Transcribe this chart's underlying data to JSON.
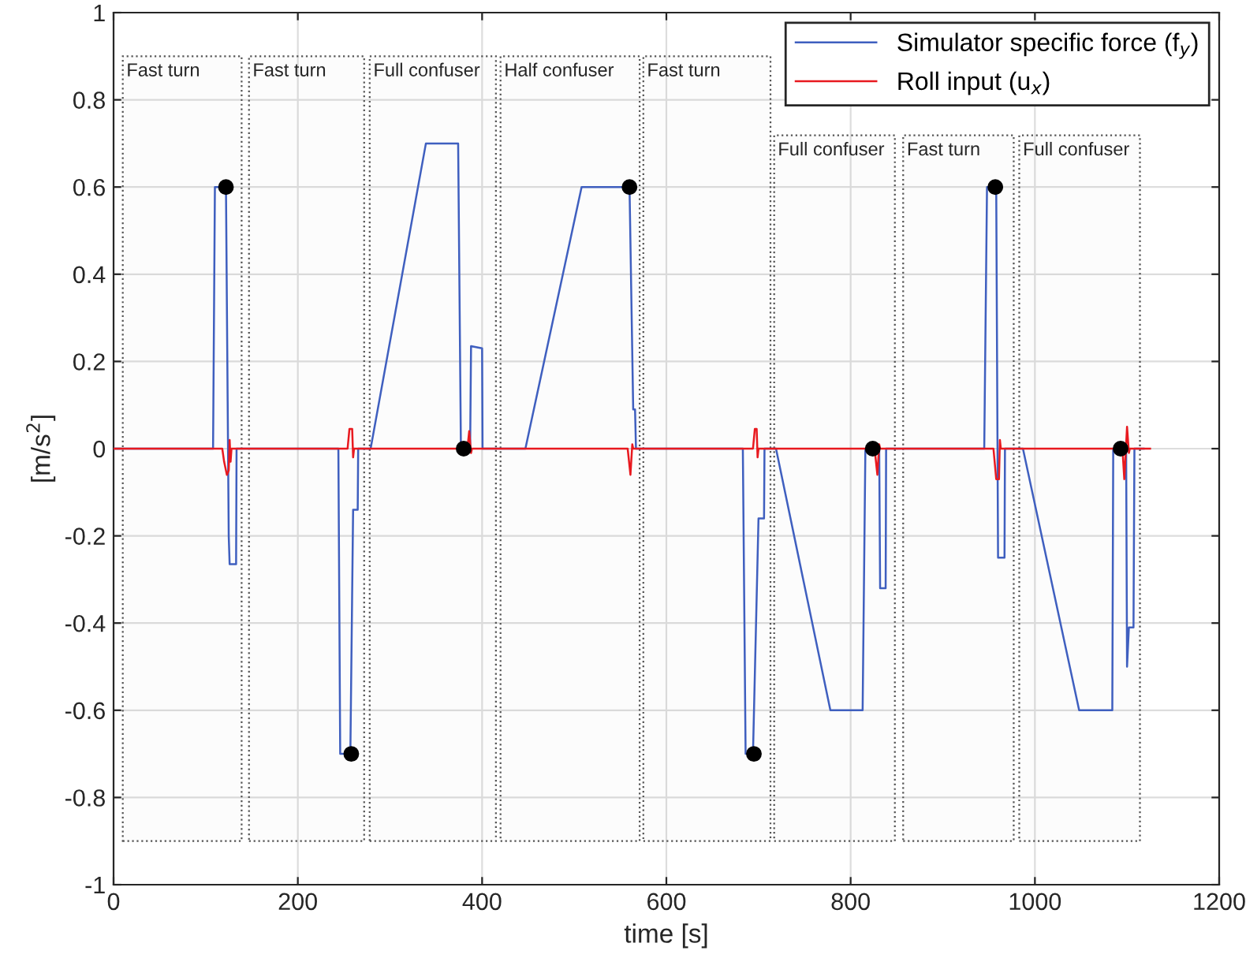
{
  "chart_data": {
    "type": "line",
    "xlabel": "time [s]",
    "ylabel": "[m/s$^{2}$]",
    "xlim": [
      0,
      1200
    ],
    "xticks": [
      0,
      200,
      400,
      600,
      800,
      1000,
      1200
    ],
    "ylim": [
      -1,
      1
    ],
    "yticks": [
      -1,
      -0.8,
      -0.6,
      -0.4,
      -0.2,
      0,
      0.2,
      0.4,
      0.6,
      0.8,
      1
    ],
    "grid": true,
    "legend": "top right",
    "line_style": "solid",
    "marker": "none",
    "series": [
      {
        "name": "Simulator specific force (f$_{y}$)",
        "color": "#3f5fbf",
        "x": [
          0,
          108,
          110,
          122,
          125,
          126,
          133,
          133.5,
          244,
          246,
          257,
          260,
          265,
          265.5,
          279,
          339,
          374,
          377,
          387,
          388,
          400,
          400.5,
          447,
          508,
          560,
          564,
          566,
          567,
          683,
          686,
          694,
          700,
          706,
          706.5,
          719,
          778,
          813,
          816,
          831,
          832,
          838,
          838.5,
          945,
          948,
          958,
          960,
          967,
          967.5,
          987,
          1048,
          1084,
          1085,
          1099,
          1100,
          1102,
          1107,
          1108,
          1118
        ],
        "values": [
          0,
          0,
          0.6,
          0.6,
          -0.2,
          -0.265,
          -0.265,
          0,
          0,
          -0.7,
          -0.7,
          -0.14,
          -0.14,
          0,
          0,
          0.7,
          0.7,
          0,
          0,
          0.235,
          0.23,
          0,
          0,
          0.6,
          0.6,
          0.09,
          0.09,
          0,
          0,
          -0.7,
          -0.7,
          -0.16,
          -0.16,
          0,
          0,
          -0.6,
          -0.6,
          0,
          0,
          -0.32,
          -0.32,
          0,
          0,
          0.6,
          0.6,
          -0.25,
          -0.25,
          0,
          0,
          -0.6,
          -0.6,
          0,
          0,
          -0.5,
          -0.41,
          -0.41,
          0,
          0
        ]
      },
      {
        "name": "Roll input (u$_{x}$)",
        "color": "#e8191f",
        "x": [
          0,
          118,
          120,
          123,
          125,
          126,
          127,
          128,
          254,
          256,
          259,
          260,
          261,
          384,
          386,
          388,
          389,
          558,
          561,
          563,
          564,
          694,
          696,
          698,
          699,
          700,
          826,
          829,
          831,
          832,
          955,
          958,
          961,
          962,
          963,
          1095,
          1097,
          1100,
          1102,
          1103,
          1125
        ],
        "values": [
          0,
          0,
          -0.03,
          -0.06,
          -0.05,
          0.02,
          -0.03,
          0,
          0,
          0.045,
          0.045,
          -0.02,
          0,
          0,
          0.04,
          -0.01,
          0,
          0,
          -0.06,
          0.01,
          0,
          0,
          0.045,
          0.045,
          -0.02,
          0,
          0,
          -0.06,
          0.01,
          0,
          0,
          -0.07,
          -0.07,
          0.02,
          0,
          0,
          -0.07,
          0.05,
          -0.01,
          0,
          0
        ]
      },
      {
        "type": "scatter",
        "marker": "circle",
        "color": "#000000",
        "x": [
          122,
          258,
          380,
          560,
          695,
          824,
          957,
          1093
        ],
        "values": [
          0.6,
          -0.7,
          0,
          0.6,
          -0.7,
          0,
          0.6,
          0
        ]
      }
    ],
    "bands": [
      {
        "axis": "x",
        "from": 10,
        "to": 139,
        "label": "Fast turn",
        "color": "#555555"
      },
      {
        "axis": "x",
        "from": 147,
        "to": 272,
        "label": "Fast turn",
        "color": "#555555"
      },
      {
        "axis": "x",
        "from": 278,
        "to": 415,
        "label": "Full confuser",
        "color": "#555555"
      },
      {
        "axis": "x",
        "from": 420,
        "to": 571,
        "label": "Half confuser",
        "color": "#555555"
      },
      {
        "axis": "x",
        "from": 575,
        "to": 713,
        "label": "Fast turn",
        "color": "#555555"
      },
      {
        "axis": "x",
        "from": 717,
        "to": 848,
        "label": "Full confuser",
        "color": "#555555"
      },
      {
        "axis": "x",
        "from": 857,
        "to": 977,
        "label": "Fast turn",
        "color": "#555555"
      },
      {
        "axis": "x",
        "from": 983,
        "to": 1114,
        "label": "Full confuser",
        "color": "#555555"
      }
    ]
  }
}
